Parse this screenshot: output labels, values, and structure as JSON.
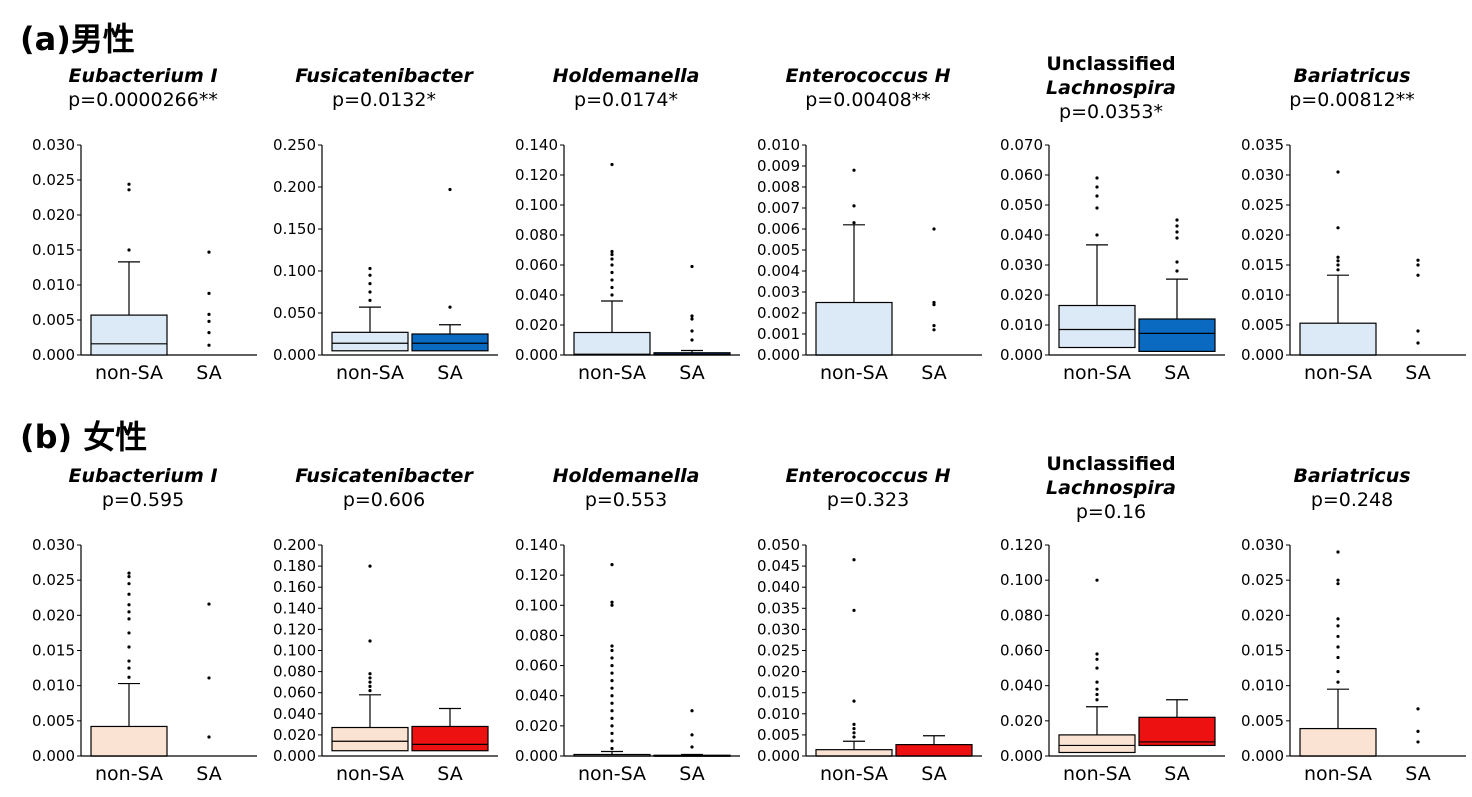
{
  "colors": {
    "male_nonSA": "#dce9f6",
    "male_SA": "#0a6ac2",
    "female_nonSA": "#fbe3d3",
    "female_SA": "#ee1111",
    "outline": "#000000"
  },
  "sections": [
    {
      "title": "(a)男性"
    },
    {
      "title": "(b) 女性"
    }
  ],
  "chart_data": [
    {
      "type": "box",
      "section": "male",
      "title_prefix": "",
      "title": "Eubacterium I",
      "pvalue": "p=0.0000266**",
      "categories": [
        "non-SA",
        "SA"
      ],
      "ylim": [
        0,
        0.03
      ],
      "yticks": [
        "0.000",
        "0.005",
        "0.010",
        "0.015",
        "0.020",
        "0.025",
        "0.030"
      ],
      "boxes": [
        {
          "name": "non-SA",
          "q1": 0.0,
          "median": 0.0016,
          "q3": 0.0057,
          "whisker_low": 0.0,
          "whisker_high": 0.0133,
          "outliers": [
            0.015,
            0.0236,
            0.0244
          ]
        },
        {
          "name": "SA",
          "q1": 0.0,
          "median": 0.0,
          "q3": 0.0,
          "whisker_low": 0.0,
          "whisker_high": 0.0,
          "outliers": [
            0.0014,
            0.0032,
            0.0048,
            0.0058,
            0.0088,
            0.0147
          ]
        }
      ]
    },
    {
      "type": "box",
      "section": "male",
      "title_prefix": "",
      "title": "Fusicatenibacter",
      "pvalue": "p=0.0132*",
      "categories": [
        "non-SA",
        "SA"
      ],
      "ylim": [
        0,
        0.25
      ],
      "yticks": [
        "0.000",
        "0.050",
        "0.100",
        "0.150",
        "0.200",
        "0.250"
      ],
      "boxes": [
        {
          "name": "non-SA",
          "q1": 0.005,
          "median": 0.014,
          "q3": 0.027,
          "whisker_low": 0.0,
          "whisker_high": 0.057,
          "outliers": [
            0.065,
            0.075,
            0.085,
            0.095,
            0.103
          ]
        },
        {
          "name": "SA",
          "q1": 0.005,
          "median": 0.014,
          "q3": 0.025,
          "whisker_low": 0.0,
          "whisker_high": 0.036,
          "outliers": [
            0.057,
            0.197
          ]
        }
      ]
    },
    {
      "type": "box",
      "section": "male",
      "title_prefix": "",
      "title": "Holdemanella",
      "pvalue": "p=0.0174*",
      "categories": [
        "non-SA",
        "SA"
      ],
      "ylim": [
        0,
        0.14
      ],
      "yticks": [
        "0.000",
        "0.020",
        "0.040",
        "0.060",
        "0.080",
        "0.100",
        "0.120",
        "0.140"
      ],
      "boxes": [
        {
          "name": "non-SA",
          "q1": 0.0,
          "median": 0.0005,
          "q3": 0.015,
          "whisker_low": 0.0,
          "whisker_high": 0.036,
          "outliers": [
            0.04,
            0.045,
            0.05,
            0.055,
            0.06,
            0.064,
            0.067,
            0.069,
            0.127
          ]
        },
        {
          "name": "SA",
          "q1": 0.0,
          "median": 0.0005,
          "q3": 0.0015,
          "whisker_low": 0.0,
          "whisker_high": 0.003,
          "outliers": [
            0.01,
            0.016,
            0.024,
            0.026,
            0.059
          ]
        }
      ]
    },
    {
      "type": "box",
      "section": "male",
      "title_prefix": "",
      "title": "Enterococcus H",
      "pvalue": "p=0.00408**",
      "categories": [
        "non-SA",
        "SA"
      ],
      "ylim": [
        0,
        0.01
      ],
      "yticks": [
        "0.000",
        "0.001",
        "0.002",
        "0.003",
        "0.004",
        "0.005",
        "0.006",
        "0.007",
        "0.008",
        "0.009",
        "0.010"
      ],
      "boxes": [
        {
          "name": "non-SA",
          "q1": 0.0,
          "median": 0.0,
          "q3": 0.0025,
          "whisker_low": 0.0,
          "whisker_high": 0.0062,
          "outliers": [
            0.0063,
            0.0071,
            0.0088
          ]
        },
        {
          "name": "SA",
          "q1": 0.0,
          "median": 0.0,
          "q3": 0.0,
          "whisker_low": 0.0,
          "whisker_high": 0.0,
          "outliers": [
            0.0012,
            0.0014,
            0.0024,
            0.0025,
            0.006
          ]
        }
      ]
    },
    {
      "type": "box",
      "section": "male",
      "title_prefix": "Unclassified",
      "title": "Lachnospira",
      "pvalue": "p=0.0353*",
      "categories": [
        "non-SA",
        "SA"
      ],
      "ylim": [
        0,
        0.07
      ],
      "yticks": [
        "0.000",
        "0.010",
        "0.020",
        "0.030",
        "0.040",
        "0.050",
        "0.060",
        "0.070"
      ],
      "boxes": [
        {
          "name": "non-SA",
          "q1": 0.0025,
          "median": 0.0085,
          "q3": 0.0165,
          "whisker_low": 0.0,
          "whisker_high": 0.0367,
          "outliers": [
            0.04,
            0.049,
            0.053,
            0.056,
            0.059
          ]
        },
        {
          "name": "SA",
          "q1": 0.0012,
          "median": 0.0072,
          "q3": 0.012,
          "whisker_low": 0.0,
          "whisker_high": 0.0253,
          "outliers": [
            0.028,
            0.031,
            0.039,
            0.041,
            0.043,
            0.045
          ]
        }
      ]
    },
    {
      "type": "box",
      "section": "male",
      "title_prefix": "",
      "title": "Bariatricus",
      "pvalue": "p=0.00812**",
      "categories": [
        "non-SA",
        "SA"
      ],
      "ylim": [
        0,
        0.035
      ],
      "yticks": [
        "0.000",
        "0.005",
        "0.010",
        "0.015",
        "0.020",
        "0.025",
        "0.030",
        "0.035"
      ],
      "boxes": [
        {
          "name": "non-SA",
          "q1": 0.0,
          "median": 0.0,
          "q3": 0.0053,
          "whisker_low": 0.0,
          "whisker_high": 0.0133,
          "outliers": [
            0.0142,
            0.015,
            0.0157,
            0.0163,
            0.0212,
            0.0305
          ]
        },
        {
          "name": "SA",
          "q1": 0.0,
          "median": 0.0,
          "q3": 0.0,
          "whisker_low": 0.0,
          "whisker_high": 0.0,
          "outliers": [
            0.002,
            0.004,
            0.0133,
            0.015,
            0.0158
          ]
        }
      ]
    },
    {
      "type": "box",
      "section": "female",
      "title_prefix": "",
      "title": "Eubacterium I",
      "pvalue": "p=0.595",
      "categories": [
        "non-SA",
        "SA"
      ],
      "ylim": [
        0,
        0.03
      ],
      "yticks": [
        "0.000",
        "0.005",
        "0.010",
        "0.015",
        "0.020",
        "0.025",
        "0.030"
      ],
      "boxes": [
        {
          "name": "non-SA",
          "q1": 0.0,
          "median": 0.0,
          "q3": 0.0042,
          "whisker_low": 0.0,
          "whisker_high": 0.0103,
          "outliers": [
            0.0112,
            0.0125,
            0.0135,
            0.0155,
            0.0175,
            0.0195,
            0.0205,
            0.0215,
            0.023,
            0.0245,
            0.0255,
            0.026
          ]
        },
        {
          "name": "SA",
          "q1": 0.0,
          "median": 0.0,
          "q3": 0.0,
          "whisker_low": 0.0,
          "whisker_high": 0.0,
          "outliers": [
            0.0027,
            0.0111,
            0.0216
          ]
        }
      ]
    },
    {
      "type": "box",
      "section": "female",
      "title_prefix": "",
      "title": "Fusicatenibacter",
      "pvalue": "p=0.606",
      "categories": [
        "non-SA",
        "SA"
      ],
      "ylim": [
        0,
        0.2
      ],
      "yticks": [
        "0.000",
        "0.020",
        "0.040",
        "0.060",
        "0.080",
        "0.100",
        "0.120",
        "0.140",
        "0.160",
        "0.180",
        "0.200"
      ],
      "boxes": [
        {
          "name": "non-SA",
          "q1": 0.005,
          "median": 0.014,
          "q3": 0.027,
          "whisker_low": 0.0,
          "whisker_high": 0.058,
          "outliers": [
            0.062,
            0.066,
            0.07,
            0.074,
            0.078,
            0.109,
            0.18
          ]
        },
        {
          "name": "SA",
          "q1": 0.005,
          "median": 0.011,
          "q3": 0.028,
          "whisker_low": 0.0,
          "whisker_high": 0.045,
          "outliers": []
        }
      ]
    },
    {
      "type": "box",
      "section": "female",
      "title_prefix": "",
      "title": "Holdemanella",
      "pvalue": "p=0.553",
      "categories": [
        "non-SA",
        "SA"
      ],
      "ylim": [
        0,
        0.14
      ],
      "yticks": [
        "0.000",
        "0.020",
        "0.040",
        "0.060",
        "0.080",
        "0.100",
        "0.120",
        "0.140"
      ],
      "boxes": [
        {
          "name": "non-SA",
          "q1": 0.0,
          "median": 0.0,
          "q3": 0.001,
          "whisker_low": 0.0,
          "whisker_high": 0.003,
          "outliers": [
            0.005,
            0.01,
            0.015,
            0.02,
            0.025,
            0.03,
            0.035,
            0.04,
            0.045,
            0.05,
            0.055,
            0.06,
            0.065,
            0.07,
            0.073,
            0.1,
            0.102,
            0.127
          ]
        },
        {
          "name": "SA",
          "q1": 0.0,
          "median": 0.0,
          "q3": 0.0005,
          "whisker_low": 0.0,
          "whisker_high": 0.001,
          "outliers": [
            0.006,
            0.014,
            0.03
          ]
        }
      ]
    },
    {
      "type": "box",
      "section": "female",
      "title_prefix": "",
      "title": "Enterococcus H",
      "pvalue": "p=0.323",
      "categories": [
        "non-SA",
        "SA"
      ],
      "ylim": [
        0,
        0.05
      ],
      "yticks": [
        "0.000",
        "0.005",
        "0.010",
        "0.015",
        "0.020",
        "0.025",
        "0.030",
        "0.035",
        "0.040",
        "0.045",
        "0.050"
      ],
      "boxes": [
        {
          "name": "non-SA",
          "q1": 0.0,
          "median": 0.0,
          "q3": 0.0015,
          "whisker_low": 0.0,
          "whisker_high": 0.0035,
          "outliers": [
            0.0045,
            0.0055,
            0.0065,
            0.0075,
            0.013,
            0.0345,
            0.0465
          ]
        },
        {
          "name": "SA",
          "q1": 0.0,
          "median": 0.0,
          "q3": 0.0027,
          "whisker_low": 0.0,
          "whisker_high": 0.0048,
          "outliers": []
        }
      ]
    },
    {
      "type": "box",
      "section": "female",
      "title_prefix": "Unclassified",
      "title": "Lachnospira",
      "pvalue": "p=0.16",
      "categories": [
        "non-SA",
        "SA"
      ],
      "ylim": [
        0,
        0.12
      ],
      "yticks": [
        "0.000",
        "0.020",
        "0.040",
        "0.060",
        "0.080",
        "0.100",
        "0.120"
      ],
      "boxes": [
        {
          "name": "non-SA",
          "q1": 0.002,
          "median": 0.006,
          "q3": 0.012,
          "whisker_low": 0.0,
          "whisker_high": 0.028,
          "outliers": [
            0.032,
            0.035,
            0.038,
            0.042,
            0.05,
            0.055,
            0.058,
            0.1
          ]
        },
        {
          "name": "SA",
          "q1": 0.006,
          "median": 0.008,
          "q3": 0.022,
          "whisker_low": 0.0,
          "whisker_high": 0.032,
          "outliers": []
        }
      ]
    },
    {
      "type": "box",
      "section": "female",
      "title_prefix": "",
      "title": "Bariatricus",
      "pvalue": "p=0.248",
      "categories": [
        "non-SA",
        "SA"
      ],
      "ylim": [
        0,
        0.03
      ],
      "yticks": [
        "0.000",
        "0.005",
        "0.010",
        "0.015",
        "0.020",
        "0.025",
        "0.030"
      ],
      "boxes": [
        {
          "name": "non-SA",
          "q1": 0.0,
          "median": 0.0,
          "q3": 0.0039,
          "whisker_low": 0.0,
          "whisker_high": 0.0095,
          "outliers": [
            0.0105,
            0.012,
            0.014,
            0.0155,
            0.017,
            0.0185,
            0.0195,
            0.0245,
            0.025,
            0.029
          ]
        },
        {
          "name": "SA",
          "q1": 0.0,
          "median": 0.0,
          "q3": 0.0,
          "whisker_low": 0.0,
          "whisker_high": 0.0,
          "outliers": [
            0.002,
            0.0035,
            0.0067
          ]
        }
      ]
    }
  ]
}
